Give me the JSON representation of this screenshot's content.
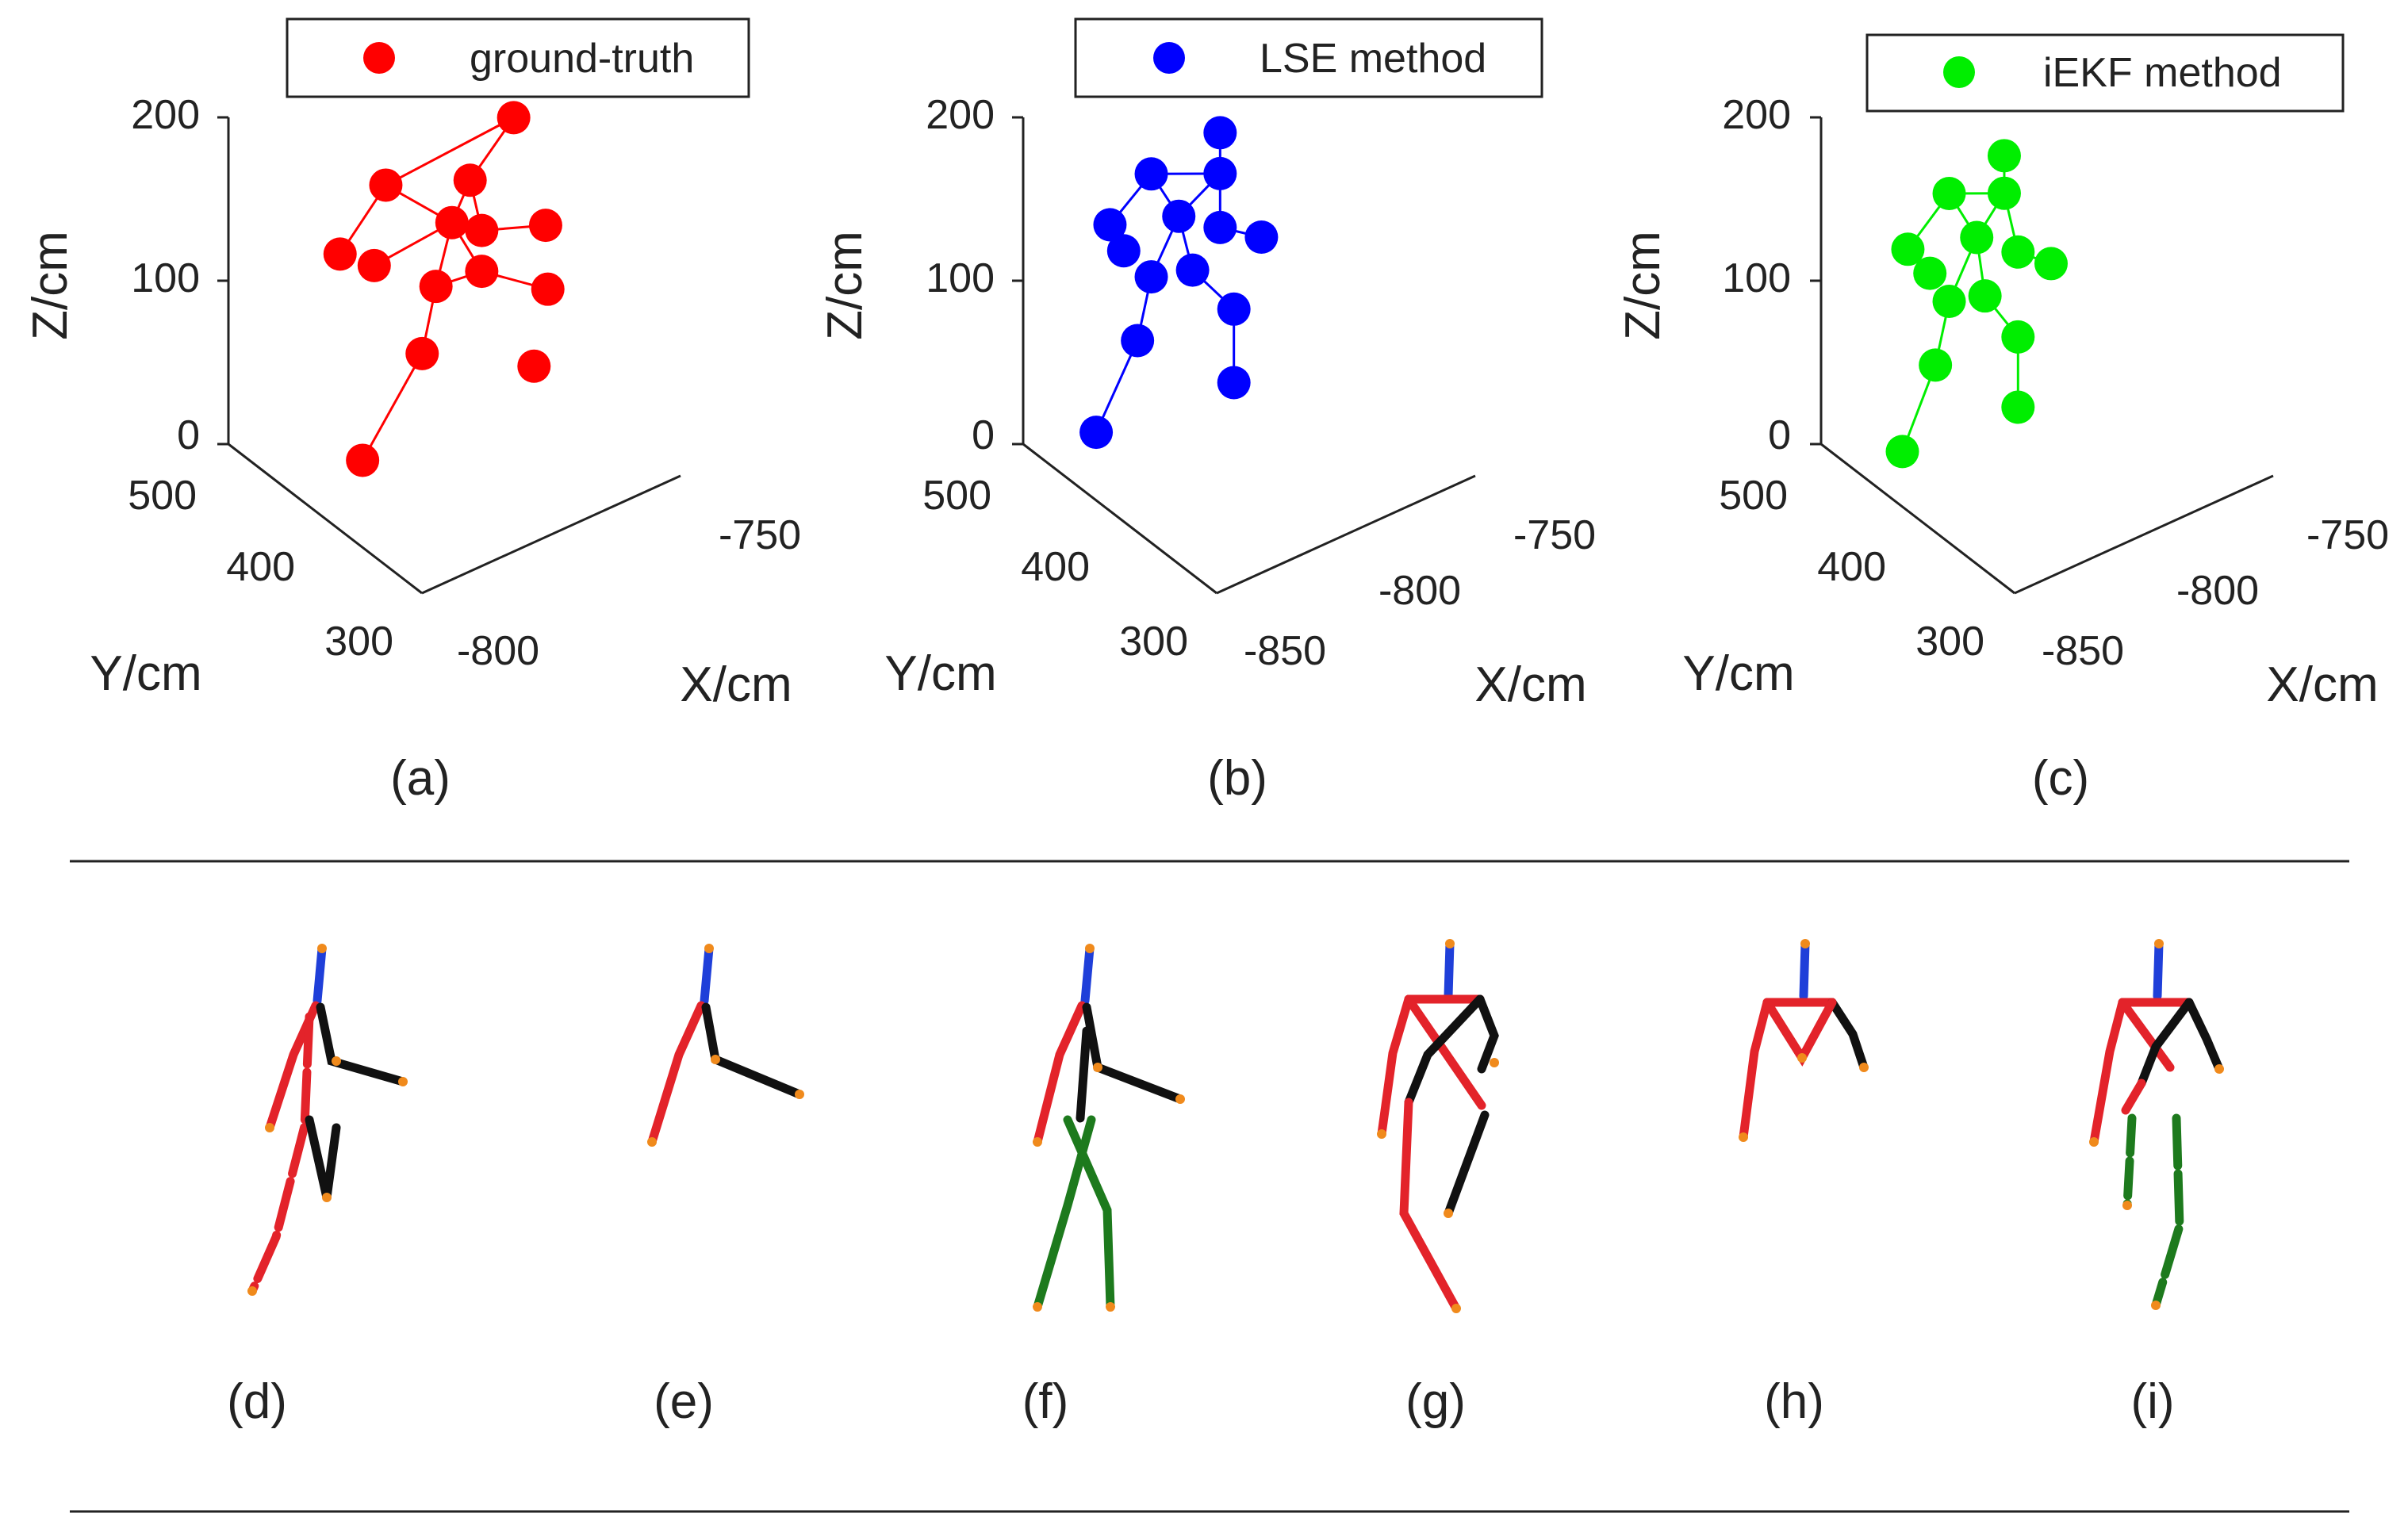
{
  "chart_data": [
    {
      "type": "scatter",
      "subtype": "3d-skeleton",
      "panel": "(a)",
      "legend": "ground-truth",
      "color": "#ff0000",
      "xlabel": "X/cm",
      "ylabel": "Y/cm",
      "zlabel": "Z/cm",
      "xticks": [
        "-800",
        "-750"
      ],
      "yticks": [
        "300",
        "400",
        "500"
      ],
      "zticks": [
        "0",
        "100",
        "200"
      ],
      "joints": [
        {
          "id": "head",
          "x": -770,
          "y": 390,
          "z": 170
        },
        {
          "id": "neck",
          "x": -785,
          "y": 400,
          "z": 140
        },
        {
          "id": "lshoulder",
          "x": -810,
          "y": 390,
          "z": 145
        },
        {
          "id": "spine",
          "x": -790,
          "y": 395,
          "z": 115
        },
        {
          "id": "lelbow",
          "x": -825,
          "y": 395,
          "z": 110
        },
        {
          "id": "lhand",
          "x": -815,
          "y": 400,
          "z": 100
        },
        {
          "id": "relbow",
          "x": -780,
          "y": 390,
          "z": 105
        },
        {
          "id": "rhand",
          "x": -760,
          "y": 390,
          "z": 100
        },
        {
          "id": "lhip",
          "x": -795,
          "y": 395,
          "z": 78
        },
        {
          "id": "rhip",
          "x": -780,
          "y": 390,
          "z": 80
        },
        {
          "id": "lknee",
          "x": -800,
          "y": 400,
          "z": 40
        },
        {
          "id": "rknee",
          "x": -760,
          "y": 395,
          "z": 62
        },
        {
          "id": "lfoot",
          "x": -820,
          "y": 410,
          "z": -15
        },
        {
          "id": "rfoot",
          "x": -765,
          "y": 400,
          "z": 18
        }
      ]
    },
    {
      "type": "scatter",
      "subtype": "3d-skeleton",
      "panel": "(b)",
      "legend": "LSE method",
      "color": "#0000ff",
      "xlabel": "X/cm",
      "ylabel": "Y/cm",
      "zlabel": "Z/cm",
      "xticks": [
        "-850",
        "-800",
        "-750"
      ],
      "yticks": [
        "300",
        "400",
        "500"
      ],
      "zticks": [
        "0",
        "100",
        "200"
      ],
      "joints": [
        {
          "id": "head",
          "x": -790,
          "y": 395,
          "z": 170
        },
        {
          "id": "neck",
          "x": -790,
          "y": 395,
          "z": 145
        },
        {
          "id": "lshoulder",
          "x": -815,
          "y": 395,
          "z": 155
        },
        {
          "id": "spine",
          "x": -805,
          "y": 395,
          "z": 125
        },
        {
          "id": "lelbow",
          "x": -830,
          "y": 395,
          "z": 130
        },
        {
          "id": "lhand",
          "x": -825,
          "y": 395,
          "z": 112
        },
        {
          "id": "relbow",
          "x": -790,
          "y": 395,
          "z": 112
        },
        {
          "id": "rhand",
          "x": -775,
          "y": 395,
          "z": 100
        },
        {
          "id": "lhip",
          "x": -815,
          "y": 395,
          "z": 92
        },
        {
          "id": "rhip",
          "x": -800,
          "y": 395,
          "z": 90
        },
        {
          "id": "lknee",
          "x": -820,
          "y": 395,
          "z": 55
        },
        {
          "id": "rknee",
          "x": -785,
          "y": 395,
          "z": 60
        },
        {
          "id": "lfoot",
          "x": -835,
          "y": 395,
          "z": 5
        },
        {
          "id": "rfoot",
          "x": -785,
          "y": 395,
          "z": 15
        }
      ]
    },
    {
      "type": "scatter",
      "subtype": "3d-skeleton",
      "panel": "(c)",
      "legend": "iEKF method",
      "color": "#00ee00",
      "xlabel": "X/cm",
      "ylabel": "Y/cm",
      "zlabel": "Z/cm",
      "xticks": [
        "-850",
        "-800",
        "-750"
      ],
      "yticks": [
        "300",
        "400",
        "500"
      ],
      "zticks": [
        "0",
        "100",
        "200"
      ],
      "joints": [
        {
          "id": "head",
          "x": -795,
          "y": 395,
          "z": 158
        },
        {
          "id": "neck",
          "x": -795,
          "y": 395,
          "z": 135
        },
        {
          "id": "lshoulder",
          "x": -815,
          "y": 395,
          "z": 143
        },
        {
          "id": "spine",
          "x": -805,
          "y": 395,
          "z": 112
        },
        {
          "id": "lelbow",
          "x": -830,
          "y": 395,
          "z": 115
        },
        {
          "id": "lhand",
          "x": -822,
          "y": 395,
          "z": 97
        },
        {
          "id": "relbow",
          "x": -790,
          "y": 395,
          "z": 97
        },
        {
          "id": "rhand",
          "x": -778,
          "y": 395,
          "z": 85
        },
        {
          "id": "lhip",
          "x": -815,
          "y": 395,
          "z": 77
        },
        {
          "id": "rhip",
          "x": -802,
          "y": 395,
          "z": 75
        },
        {
          "id": "lknee",
          "x": -820,
          "y": 395,
          "z": 40
        },
        {
          "id": "rknee",
          "x": -790,
          "y": 395,
          "z": 45
        },
        {
          "id": "lfoot",
          "x": -832,
          "y": 395,
          "z": -8
        },
        {
          "id": "rfoot",
          "x": -790,
          "y": 395,
          "z": 2
        }
      ]
    }
  ],
  "bones_a": [
    [
      "head",
      "neck"
    ],
    [
      "head",
      "lshoulder"
    ],
    [
      "neck",
      "spine"
    ],
    [
      "lshoulder",
      "lelbow"
    ],
    [
      "lshoulder",
      "spine"
    ],
    [
      "neck",
      "relbow"
    ],
    [
      "relbow",
      "rhand"
    ],
    [
      "spine",
      "lhand"
    ],
    [
      "spine",
      "lhip"
    ],
    [
      "spine",
      "rhip"
    ],
    [
      "lhip",
      "rhip"
    ],
    [
      "lhip",
      "lknee"
    ],
    [
      "lknee",
      "lfoot"
    ],
    [
      "rhip",
      "rknee"
    ]
  ],
  "bones_b": [
    [
      "head",
      "neck"
    ],
    [
      "neck",
      "lshoulder"
    ],
    [
      "lshoulder",
      "lelbow"
    ],
    [
      "lelbow",
      "lhand"
    ],
    [
      "lshoulder",
      "spine"
    ],
    [
      "neck",
      "spine"
    ],
    [
      "neck",
      "relbow"
    ],
    [
      "relbow",
      "rhand"
    ],
    [
      "spine",
      "lhip"
    ],
    [
      "spine",
      "rhip"
    ],
    [
      "lhip",
      "lknee"
    ],
    [
      "lknee",
      "lfoot"
    ],
    [
      "rhip",
      "rknee"
    ],
    [
      "rknee",
      "rfoot"
    ]
  ],
  "panels_bottom": [
    {
      "label": "(d)"
    },
    {
      "label": "(e)"
    },
    {
      "label": "(f)"
    },
    {
      "label": "(g)"
    },
    {
      "label": "(h)"
    },
    {
      "label": "(i)"
    }
  ],
  "colors": {
    "head_bone": "#1f3fd9",
    "left_side": "#e3232a",
    "right_side": "#111111",
    "legs_alt": "#1d7a1d",
    "joint_dot": "#f08a1c",
    "axis": "#222222",
    "rule": "#222222"
  }
}
